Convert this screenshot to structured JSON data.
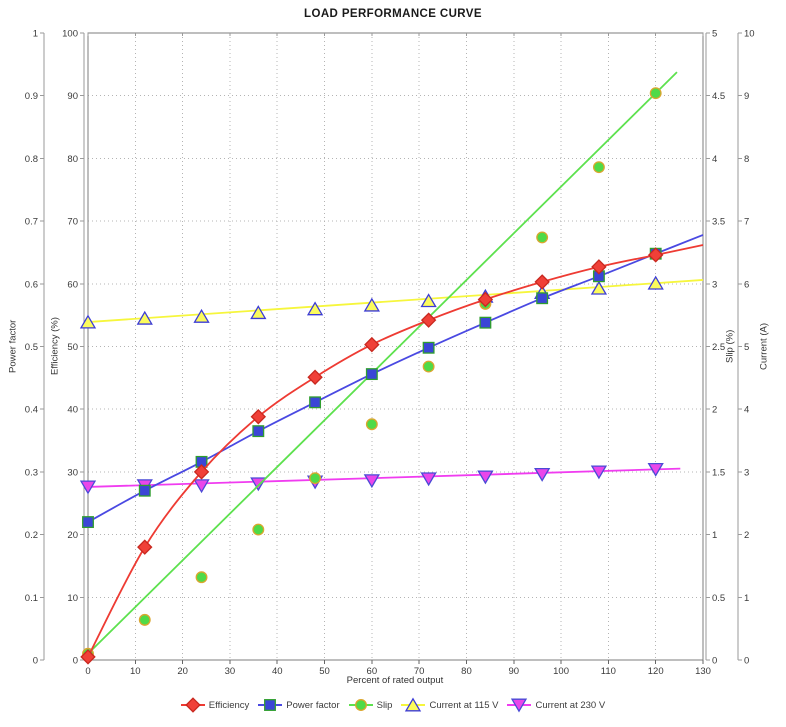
{
  "title": "LOAD PERFORMANCE CURVE",
  "chart_data": {
    "type": "line",
    "title": "LOAD PERFORMANCE CURVE",
    "xlabel": "Percent of rated output",
    "xlim": [
      0,
      130
    ],
    "x_tick_values": [
      0,
      10,
      20,
      30,
      40,
      50,
      60,
      70,
      80,
      90,
      100,
      110,
      120,
      130
    ],
    "x_tick_labels": [
      "0",
      "10",
      "20",
      "30",
      "40",
      "50",
      "60",
      "70",
      "80",
      "90",
      "100",
      "110",
      "120",
      "130"
    ],
    "grid": true,
    "legend_position": "bottom",
    "axes": [
      {
        "id": "power_factor",
        "label": "Power factor",
        "side": "left",
        "order": "outer",
        "min": 0,
        "max": 1,
        "tick_values": [
          0,
          0.1,
          0.2,
          0.3,
          0.4,
          0.5,
          0.6,
          0.7,
          0.8,
          0.9,
          1
        ],
        "tick_labels": [
          "0",
          "0.1",
          "0.2",
          "0.3",
          "0.4",
          "0.5",
          "0.6",
          "0.7",
          "0.8",
          "0.9",
          "1"
        ]
      },
      {
        "id": "efficiency",
        "label": "Efficiency (%)",
        "side": "left",
        "order": "inner",
        "min": 0,
        "max": 100,
        "tick_values": [
          0,
          10,
          20,
          30,
          40,
          50,
          60,
          70,
          80,
          90,
          100
        ],
        "tick_labels": [
          "0",
          "10",
          "20",
          "30",
          "40",
          "50",
          "60",
          "70",
          "80",
          "90",
          "100"
        ]
      },
      {
        "id": "slip",
        "label": "Slip (%)",
        "side": "right",
        "order": "inner",
        "min": 0,
        "max": 5,
        "tick_values": [
          0,
          0.5,
          1,
          1.5,
          2,
          2.5,
          3,
          3.5,
          4,
          4.5,
          5
        ],
        "tick_labels": [
          "0",
          "0.5",
          "1",
          "1.5",
          "2",
          "2.5",
          "3",
          "3.5",
          "4",
          "4.5",
          "5"
        ]
      },
      {
        "id": "current",
        "label": "Current (A)",
        "side": "right",
        "order": "outer",
        "min": 0,
        "max": 10,
        "tick_values": [
          0,
          1,
          2,
          3,
          4,
          5,
          6,
          7,
          8,
          9,
          10
        ],
        "tick_labels": [
          "0",
          "1",
          "2",
          "3",
          "4",
          "5",
          "6",
          "7",
          "8",
          "9",
          "10"
        ]
      }
    ],
    "x": [
      0,
      12,
      24,
      36,
      48,
      60,
      72,
      84,
      96,
      108,
      120
    ],
    "series": [
      {
        "name": "Efficiency",
        "axis": "efficiency",
        "marker": "diamond",
        "trend": "curve",
        "line_end_x": 130,
        "line_color": "#ee3b33",
        "marker_fill": "#f04038",
        "marker_border": "#c8281f",
        "values": [
          0.5,
          18.0,
          30.0,
          38.8,
          45.1,
          50.3,
          54.2,
          57.5,
          60.3,
          62.7,
          64.6
        ]
      },
      {
        "name": "Power factor",
        "axis": "power_factor",
        "marker": "square",
        "trend": "curve",
        "line_end_x": 130,
        "line_color": "#4a49e2",
        "marker_fill": "#3b46d6",
        "marker_border": "#2f9e2f",
        "values": [
          0.22,
          0.27,
          0.316,
          0.365,
          0.411,
          0.456,
          0.498,
          0.538,
          0.577,
          0.612,
          0.648
        ]
      },
      {
        "name": "Slip",
        "axis": "slip",
        "marker": "circle",
        "trend": "linear",
        "line_end_x": 124.5,
        "line_color": "#5de14e",
        "marker_fill": "#4fda48",
        "marker_border": "#dba62e",
        "values": [
          0.05,
          0.32,
          0.66,
          1.04,
          1.45,
          1.88,
          2.34,
          2.84,
          3.37,
          3.93,
          4.52
        ]
      },
      {
        "name": "Current at 115 V",
        "axis": "current",
        "marker": "triangle-up",
        "trend": "linear",
        "line_end_x": 130,
        "line_color": "#f6f63c",
        "marker_fill": "#fbfb5c",
        "marker_border": "#3c3cd6",
        "values": [
          5.39,
          5.45,
          5.48,
          5.54,
          5.6,
          5.66,
          5.73,
          5.8,
          5.86,
          5.93,
          6.01
        ]
      },
      {
        "name": "Current at 230 V",
        "axis": "current",
        "marker": "triangle-down",
        "trend": "linear",
        "line_end_x": 125.2,
        "line_color": "#f03cf0",
        "marker_fill": "#ea46ea",
        "marker_border": "#4a4ad6",
        "values": [
          2.76,
          2.78,
          2.78,
          2.81,
          2.84,
          2.86,
          2.89,
          2.92,
          2.96,
          3.0,
          3.04
        ]
      }
    ]
  }
}
